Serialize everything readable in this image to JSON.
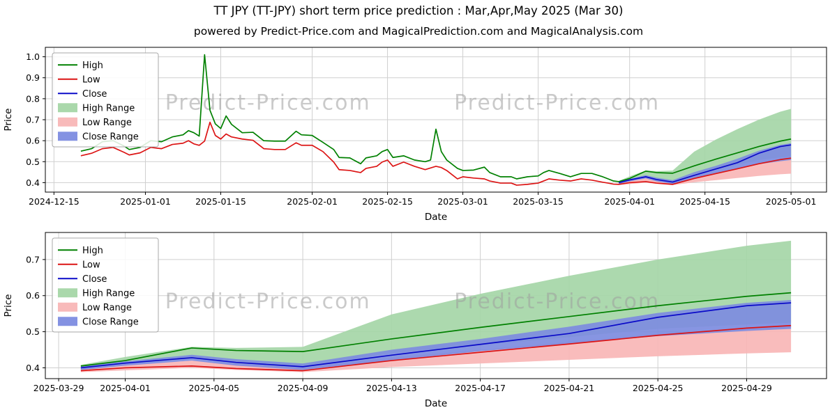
{
  "page": {
    "title": "TT JPY (TT-JPY) short term price prediction : Mar,Apr,May 2025 (Mar 30)",
    "subtitle": "powered by Predict-Price.com and MagicalPrediction.com and MagicalAnalysis.com",
    "watermark": "Predict-Price.com"
  },
  "colors": {
    "high": "#008000",
    "low": "#dc1414",
    "close": "#0a0ac8",
    "high_range": "#a5d6a7",
    "low_range": "#f8b6b6",
    "close_range": "#7d8ce0",
    "grid": "#cfcfcf",
    "watermark": "#9e9e9e",
    "axis": "#000000"
  },
  "legend": [
    {
      "label": "High",
      "type": "line",
      "color": "high"
    },
    {
      "label": "Low",
      "type": "line",
      "color": "low"
    },
    {
      "label": "Close",
      "type": "line",
      "color": "close"
    },
    {
      "label": "High Range",
      "type": "patch",
      "color": "high_range"
    },
    {
      "label": "Low Range",
      "type": "patch",
      "color": "low_range"
    },
    {
      "label": "Close Range",
      "type": "patch",
      "color": "close_range"
    }
  ],
  "chart_data": [
    {
      "type": "line",
      "name": "history-with-prediction",
      "title": "",
      "xlabel": "Date",
      "ylabel": "Price",
      "x_unit": "days since 2024-12-15",
      "xlim": [
        -1.6,
        143.6
      ],
      "ylim": [
        0.355,
        1.045
      ],
      "grid": true,
      "legend_position": "upper left",
      "xticks": [
        {
          "v": 0,
          "label": "2024-12-15"
        },
        {
          "v": 17,
          "label": "2025-01-01"
        },
        {
          "v": 31,
          "label": "2025-01-15"
        },
        {
          "v": 48,
          "label": "2025-02-01"
        },
        {
          "v": 62,
          "label": "2025-02-15"
        },
        {
          "v": 76,
          "label": "2025-03-01"
        },
        {
          "v": 90,
          "label": "2025-03-15"
        },
        {
          "v": 107,
          "label": "2025-04-01"
        },
        {
          "v": 121,
          "label": "2025-04-15"
        },
        {
          "v": 137,
          "label": "2025-05-01"
        }
      ],
      "yticks": [
        {
          "v": 0.4,
          "label": "0.4"
        },
        {
          "v": 0.5,
          "label": "0.5"
        },
        {
          "v": 0.6,
          "label": "0.6"
        },
        {
          "v": 0.7,
          "label": "0.7"
        },
        {
          "v": 0.8,
          "label": "0.8"
        },
        {
          "v": 0.9,
          "label": "0.9"
        },
        {
          "v": 1.0,
          "label": "1.0"
        }
      ],
      "x": [
        5,
        7,
        9,
        11,
        13,
        14,
        16,
        18,
        20,
        22,
        24,
        25,
        26,
        27,
        28,
        29,
        30,
        31,
        32,
        33,
        35,
        37,
        39,
        41,
        43,
        45,
        46,
        48,
        50,
        52,
        53,
        55,
        57,
        58,
        60,
        61,
        62,
        63,
        65,
        67,
        69,
        70,
        71,
        72,
        73,
        75,
        76,
        78,
        80,
        81,
        83,
        85,
        86,
        88,
        90,
        91,
        92,
        94,
        96,
        98,
        100,
        102,
        103,
        104,
        105,
        107,
        110,
        112,
        115,
        119,
        123,
        127,
        131,
        135,
        137
      ],
      "series": [
        {
          "name": "High",
          "color": "high",
          "y": [
            0.55,
            0.562,
            0.595,
            0.6,
            0.575,
            0.558,
            0.568,
            0.6,
            0.595,
            0.618,
            0.628,
            0.648,
            0.638,
            0.622,
            1.01,
            0.745,
            0.68,
            0.658,
            0.718,
            0.678,
            0.638,
            0.64,
            0.6,
            0.598,
            0.598,
            0.645,
            0.628,
            0.625,
            0.592,
            0.558,
            0.52,
            0.518,
            0.49,
            0.518,
            0.528,
            0.548,
            0.558,
            0.52,
            0.528,
            0.508,
            0.5,
            0.508,
            0.655,
            0.548,
            0.508,
            0.468,
            0.458,
            0.46,
            0.474,
            0.448,
            0.428,
            0.428,
            0.418,
            0.428,
            0.432,
            0.448,
            0.458,
            0.444,
            0.428,
            0.444,
            0.444,
            0.428,
            0.418,
            0.408,
            0.405,
            0.42,
            0.455,
            0.448,
            0.445,
            0.48,
            0.512,
            0.542,
            0.572,
            0.598,
            0.608
          ]
        },
        {
          "name": "Low",
          "color": "low",
          "y": [
            0.528,
            0.54,
            0.562,
            0.568,
            0.545,
            0.532,
            0.542,
            0.568,
            0.562,
            0.582,
            0.588,
            0.6,
            0.585,
            0.578,
            0.598,
            0.688,
            0.625,
            0.608,
            0.632,
            0.618,
            0.608,
            0.602,
            0.562,
            0.558,
            0.558,
            0.59,
            0.578,
            0.578,
            0.548,
            0.498,
            0.462,
            0.458,
            0.448,
            0.468,
            0.478,
            0.498,
            0.508,
            0.478,
            0.498,
            0.478,
            0.462,
            0.47,
            0.478,
            0.472,
            0.458,
            0.418,
            0.428,
            0.422,
            0.418,
            0.408,
            0.398,
            0.398,
            0.388,
            0.392,
            0.398,
            0.408,
            0.418,
            0.412,
            0.408,
            0.418,
            0.412,
            0.402,
            0.398,
            0.393,
            0.392,
            0.4,
            0.405,
            0.398,
            0.392,
            0.42,
            0.443,
            0.466,
            0.49,
            0.51,
            0.517
          ]
        },
        {
          "name": "Close",
          "color": "close",
          "x": [
            105,
            107,
            110,
            112,
            115,
            119,
            123,
            127,
            131,
            135,
            137
          ],
          "y": [
            0.4,
            0.413,
            0.428,
            0.415,
            0.403,
            0.435,
            0.465,
            0.495,
            0.54,
            0.572,
            0.58
          ]
        }
      ],
      "band_x": [
        105,
        107,
        110,
        112,
        115,
        119,
        123,
        127,
        131,
        135,
        137
      ],
      "bands": [
        {
          "name": "High Range",
          "color": "high_range",
          "upper": [
            0.408,
            0.43,
            0.458,
            0.455,
            0.458,
            0.548,
            0.605,
            0.655,
            0.7,
            0.738,
            0.752
          ],
          "lower": [
            0.4,
            0.412,
            0.43,
            0.418,
            0.405,
            0.44,
            0.462,
            0.485,
            0.508,
            0.52,
            0.525
          ]
        },
        {
          "name": "Low Range",
          "color": "low_range",
          "upper": [
            0.398,
            0.408,
            0.42,
            0.41,
            0.4,
            0.428,
            0.45,
            0.472,
            0.494,
            0.51,
            0.516
          ],
          "lower": [
            0.388,
            0.393,
            0.4,
            0.394,
            0.388,
            0.402,
            0.412,
            0.422,
            0.432,
            0.44,
            0.443
          ]
        },
        {
          "name": "Close Range",
          "color": "close_range",
          "upper": [
            0.406,
            0.418,
            0.436,
            0.424,
            0.412,
            0.45,
            0.48,
            0.514,
            0.552,
            0.58,
            0.588
          ],
          "lower": [
            0.394,
            0.406,
            0.42,
            0.406,
            0.394,
            0.42,
            0.446,
            0.466,
            0.488,
            0.502,
            0.508
          ]
        }
      ]
    },
    {
      "type": "line",
      "name": "prediction-detail",
      "title": "",
      "xlabel": "Date",
      "ylabel": "Price",
      "x_unit": "days since 2025-03-29",
      "xlim": [
        -0.6,
        34.6
      ],
      "ylim": [
        0.37,
        0.775
      ],
      "grid": true,
      "legend_position": "upper left",
      "xticks": [
        {
          "v": 0,
          "label": "2025-03-29"
        },
        {
          "v": 3,
          "label": "2025-04-01"
        },
        {
          "v": 7,
          "label": "2025-04-05"
        },
        {
          "v": 11,
          "label": "2025-04-09"
        },
        {
          "v": 15,
          "label": "2025-04-13"
        },
        {
          "v": 19,
          "label": "2025-04-17"
        },
        {
          "v": 23,
          "label": "2025-04-21"
        },
        {
          "v": 27,
          "label": "2025-04-25"
        },
        {
          "v": 31,
          "label": "2025-04-29"
        }
      ],
      "yticks": [
        {
          "v": 0.4,
          "label": "0.4"
        },
        {
          "v": 0.5,
          "label": "0.5"
        },
        {
          "v": 0.6,
          "label": "0.6"
        },
        {
          "v": 0.7,
          "label": "0.7"
        }
      ],
      "x": [
        1,
        3,
        6,
        8,
        11,
        15,
        19,
        23,
        27,
        31,
        33
      ],
      "series": [
        {
          "name": "High",
          "color": "high",
          "y": [
            0.405,
            0.42,
            0.455,
            0.448,
            0.445,
            0.48,
            0.512,
            0.542,
            0.572,
            0.598,
            0.608
          ]
        },
        {
          "name": "Low",
          "color": "low",
          "y": [
            0.392,
            0.4,
            0.405,
            0.398,
            0.392,
            0.42,
            0.443,
            0.466,
            0.49,
            0.51,
            0.517
          ]
        },
        {
          "name": "Close",
          "color": "close",
          "y": [
            0.4,
            0.413,
            0.428,
            0.415,
            0.403,
            0.435,
            0.465,
            0.495,
            0.54,
            0.572,
            0.58
          ]
        }
      ],
      "band_x": [
        1,
        3,
        6,
        8,
        11,
        15,
        19,
        23,
        27,
        31,
        33
      ],
      "bands": [
        {
          "name": "High Range",
          "color": "high_range",
          "upper": [
            0.408,
            0.43,
            0.458,
            0.455,
            0.458,
            0.548,
            0.605,
            0.655,
            0.7,
            0.738,
            0.752
          ],
          "lower": [
            0.4,
            0.412,
            0.43,
            0.418,
            0.405,
            0.44,
            0.462,
            0.485,
            0.508,
            0.52,
            0.525
          ]
        },
        {
          "name": "Low Range",
          "color": "low_range",
          "upper": [
            0.398,
            0.408,
            0.42,
            0.41,
            0.4,
            0.428,
            0.45,
            0.472,
            0.494,
            0.51,
            0.516
          ],
          "lower": [
            0.388,
            0.393,
            0.4,
            0.394,
            0.388,
            0.402,
            0.412,
            0.422,
            0.432,
            0.44,
            0.443
          ]
        },
        {
          "name": "Close Range",
          "color": "close_range",
          "upper": [
            0.406,
            0.418,
            0.436,
            0.424,
            0.412,
            0.45,
            0.48,
            0.514,
            0.552,
            0.58,
            0.588
          ],
          "lower": [
            0.394,
            0.406,
            0.42,
            0.406,
            0.394,
            0.42,
            0.446,
            0.466,
            0.488,
            0.502,
            0.508
          ]
        }
      ]
    }
  ]
}
